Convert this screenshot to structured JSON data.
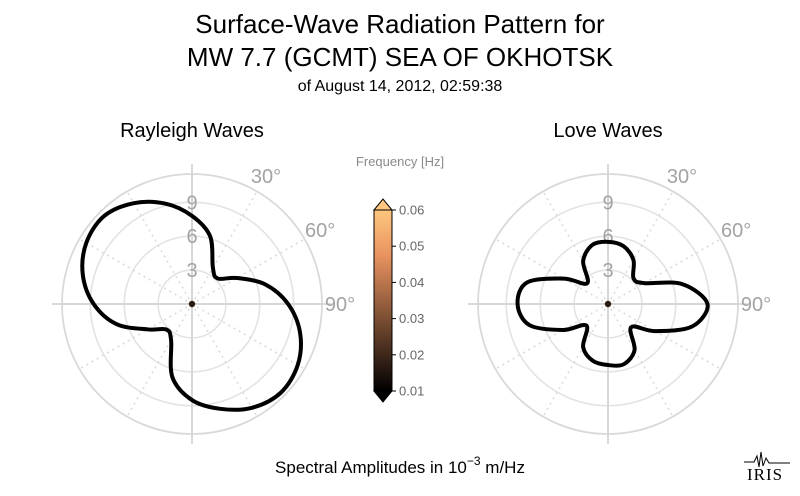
{
  "title": {
    "line1": "Surface-Wave Radiation Pattern for",
    "line2": "MW 7.7 (GCMT) SEA OF OKHOTSK",
    "line3": "of August 14, 2012, 02:59:38"
  },
  "xlabel": {
    "prefix": "Spectral Amplitudes in ",
    "base": "10",
    "exponent": "−3",
    "suffix": " m/Hz"
  },
  "logo": {
    "text": "IRIS"
  },
  "colorbar": {
    "label": "Frequency [Hz]",
    "ticks": [
      "0.06",
      "0.05",
      "0.04",
      "0.03",
      "0.02",
      "0.01"
    ],
    "range": [
      0.01,
      0.06
    ],
    "colormap": "copper",
    "extend": "both"
  },
  "chart_data": [
    {
      "type": "polar-line",
      "title": "Rayleigh Waves",
      "r_ticks": [
        "3",
        "6",
        "9"
      ],
      "r_max": 11.5,
      "angle_ticks": [
        "30°",
        "60°",
        "90°"
      ],
      "theta_direction": "clockwise",
      "theta_zero": "N",
      "series": [
        {
          "line_color": "#000000",
          "azimuth_deg": [
            0,
            15,
            30,
            45,
            60,
            75,
            90,
            105,
            120,
            135,
            150,
            165,
            180,
            195,
            210,
            225,
            240,
            255,
            270,
            285,
            300,
            315,
            330,
            345
          ],
          "amplitude": [
            7.8,
            6.2,
            3.7,
            3.2,
            4.6,
            6.7,
            8.5,
            9.9,
            10.8,
            11.1,
            10.6,
            9.6,
            8.5,
            6.7,
            3.7,
            3.2,
            4.5,
            6.9,
            8.7,
            10.0,
            10.8,
            11.0,
            10.3,
            9.2
          ]
        }
      ]
    },
    {
      "type": "polar-line",
      "title": "Love Waves",
      "r_ticks": [
        "3",
        "6",
        "9"
      ],
      "r_max": 11.5,
      "angle_ticks": [
        "30°",
        "60°",
        "90°"
      ],
      "theta_direction": "clockwise",
      "theta_zero": "N",
      "series": [
        {
          "line_color": "#000000",
          "azimuth_deg": [
            0,
            15,
            30,
            45,
            60,
            75,
            90,
            105,
            120,
            135,
            150,
            165,
            180,
            195,
            210,
            225,
            240,
            255,
            270,
            285,
            300,
            315,
            330,
            345
          ],
          "amplitude": [
            5.5,
            5.3,
            4.5,
            3.2,
            3.7,
            6.8,
            8.8,
            7.7,
            4.8,
            2.9,
            4.7,
            5.5,
            5.4,
            5.2,
            4.4,
            2.7,
            4.6,
            7.2,
            8.0,
            7.4,
            4.5,
            2.6,
            4.4,
            5.4
          ]
        }
      ]
    }
  ]
}
